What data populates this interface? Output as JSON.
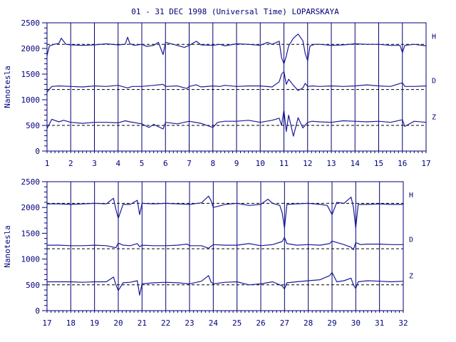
{
  "chart_data": {
    "type": "line",
    "title": "01 - 31 DEC 1998 (Universal Time) LOPARSKAYA",
    "ylabel": "Nanotesla",
    "ylim": [
      0,
      2500
    ],
    "yticks": [
      0,
      500,
      1000,
      1500,
      2000,
      2500
    ],
    "line_color": "#1a1a9a",
    "axis_color": "#00007a",
    "grid": true,
    "panels": [
      {
        "xlim": [
          1,
          17
        ],
        "xticks": [
          "1",
          "2",
          "3",
          "4",
          "5",
          "6",
          "7",
          "8",
          "9",
          "10",
          "11",
          "12",
          "13",
          "14",
          "15",
          "16",
          "17"
        ],
        "series": [
          {
            "name": "H",
            "baseline": 2080,
            "x": [
              1.0,
              1.1,
              1.3,
              1.5,
              1.6,
              1.8,
              2.0,
              2.5,
              3.0,
              3.5,
              4.0,
              4.3,
              4.4,
              4.5,
              4.7,
              5.0,
              5.2,
              5.5,
              5.7,
              5.8,
              5.9,
              6.0,
              6.5,
              6.8,
              7.0,
              7.3,
              7.5,
              8.0,
              8.3,
              8.5,
              9.0,
              9.5,
              10.0,
              10.3,
              10.5,
              10.8,
              10.9,
              11.0,
              11.1,
              11.2,
              11.4,
              11.6,
              11.8,
              11.9,
              12.0,
              12.1,
              12.3,
              12.5,
              13.0,
              13.5,
              14.0,
              14.5,
              15.0,
              15.5,
              15.9,
              16.0,
              16.1,
              16.5,
              17.0
            ],
            "y": [
              1860,
              2050,
              2080,
              2100,
              2200,
              2080,
              2070,
              2060,
              2070,
              2090,
              2070,
              2080,
              2220,
              2090,
              2060,
              2080,
              2040,
              2060,
              2120,
              2000,
              1880,
              2120,
              2060,
              2020,
              2060,
              2140,
              2070,
              2060,
              2080,
              2050,
              2090,
              2080,
              2060,
              2120,
              2080,
              2140,
              1820,
              1700,
              1850,
              2050,
              2200,
              2280,
              2150,
              1900,
              1760,
              2050,
              2080,
              2080,
              2060,
              2070,
              2090,
              2080,
              2080,
              2060,
              2060,
              1920,
              2060,
              2080,
              2050
            ]
          },
          {
            "name": "D",
            "baseline": 1200,
            "x": [
              1.0,
              1.2,
              1.5,
              2.0,
              2.5,
              3.0,
              3.5,
              4.0,
              4.4,
              4.6,
              5.0,
              5.5,
              5.9,
              6.0,
              6.5,
              6.9,
              7.0,
              7.3,
              7.5,
              8.0,
              8.3,
              8.5,
              9.0,
              9.5,
              10.0,
              10.5,
              10.8,
              10.9,
              11.0,
              11.1,
              11.2,
              11.4,
              11.6,
              11.8,
              11.9,
              12.0,
              12.2,
              12.5,
              13.0,
              13.5,
              14.0,
              14.5,
              15.0,
              15.5,
              16.0,
              16.1,
              16.5,
              17.0
            ],
            "y": [
              1150,
              1260,
              1270,
              1260,
              1250,
              1270,
              1260,
              1280,
              1230,
              1260,
              1260,
              1280,
              1300,
              1260,
              1270,
              1220,
              1260,
              1290,
              1250,
              1270,
              1260,
              1280,
              1260,
              1270,
              1270,
              1250,
              1350,
              1500,
              1550,
              1300,
              1400,
              1280,
              1180,
              1230,
              1320,
              1260,
              1270,
              1260,
              1270,
              1260,
              1270,
              1290,
              1270,
              1260,
              1330,
              1260,
              1260,
              1270
            ]
          },
          {
            "name": "Z",
            "baseline": 500,
            "x": [
              1.0,
              1.2,
              1.5,
              1.7,
              2.0,
              2.5,
              3.0,
              3.5,
              4.0,
              4.3,
              4.5,
              5.0,
              5.3,
              5.5,
              5.9,
              6.0,
              6.5,
              7.0,
              7.5,
              8.0,
              8.2,
              8.5,
              9.0,
              9.5,
              10.0,
              10.5,
              10.8,
              10.9,
              11.0,
              11.1,
              11.2,
              11.4,
              11.6,
              11.8,
              12.0,
              12.2,
              12.5,
              13.0,
              13.5,
              14.0,
              14.5,
              15.0,
              15.5,
              16.0,
              16.1,
              16.5,
              17.0
            ],
            "y": [
              440,
              620,
              570,
              600,
              560,
              540,
              560,
              560,
              550,
              590,
              570,
              530,
              460,
              520,
              430,
              560,
              530,
              580,
              540,
              460,
              560,
              580,
              580,
              600,
              560,
              600,
              640,
              500,
              800,
              380,
              700,
              290,
              650,
              450,
              560,
              580,
              570,
              560,
              590,
              580,
              570,
              580,
              560,
              610,
              480,
              580,
              560
            ]
          }
        ]
      },
      {
        "xlim": [
          17,
          32
        ],
        "xticks": [
          "17",
          "18",
          "19",
          "20",
          "21",
          "22",
          "23",
          "24",
          "25",
          "26",
          "27",
          "28",
          "29",
          "30",
          "31",
          "32"
        ],
        "series": [
          {
            "name": "H",
            "baseline": 2080,
            "x": [
              17.0,
              17.5,
              18.0,
              18.5,
              19.0,
              19.5,
              19.8,
              19.9,
              20.0,
              20.2,
              20.5,
              20.8,
              20.9,
              21.0,
              21.5,
              22.0,
              22.5,
              23.0,
              23.5,
              23.8,
              23.9,
              24.0,
              24.5,
              25.0,
              25.5,
              26.0,
              26.3,
              26.5,
              26.8,
              26.9,
              27.0,
              27.1,
              27.5,
              28.0,
              28.5,
              28.8,
              28.9,
              29.0,
              29.2,
              29.5,
              29.8,
              29.9,
              30.0,
              30.1,
              30.5,
              31.0,
              31.5,
              32.0
            ],
            "y": [
              2070,
              2070,
              2060,
              2070,
              2080,
              2070,
              2180,
              1960,
              1790,
              2060,
              2060,
              2140,
              1860,
              2080,
              2070,
              2080,
              2070,
              2060,
              2090,
              2220,
              2140,
              2000,
              2060,
              2080,
              2040,
              2060,
              2160,
              2080,
              2040,
              1900,
              1600,
              2060,
              2070,
              2080,
              2060,
              2040,
              1950,
              1860,
              2100,
              2080,
              2200,
              2010,
              1600,
              2060,
              2060,
              2070,
              2060,
              2060
            ]
          },
          {
            "name": "D",
            "baseline": 1200,
            "x": [
              17.0,
              17.5,
              18.0,
              18.5,
              19.0,
              19.5,
              19.9,
              20.0,
              20.2,
              20.5,
              20.8,
              20.9,
              21.0,
              21.5,
              22.0,
              22.5,
              22.9,
              23.0,
              23.5,
              23.8,
              24.0,
              24.5,
              25.0,
              25.5,
              26.0,
              26.5,
              26.9,
              27.0,
              27.1,
              27.5,
              28.0,
              28.5,
              28.9,
              29.0,
              29.5,
              29.8,
              29.9,
              30.0,
              30.2,
              30.5,
              31.0,
              31.5,
              32.0
            ],
            "y": [
              1270,
              1270,
              1260,
              1260,
              1270,
              1260,
              1220,
              1310,
              1270,
              1260,
              1300,
              1240,
              1270,
              1260,
              1260,
              1270,
              1290,
              1260,
              1260,
              1210,
              1280,
              1270,
              1270,
              1300,
              1260,
              1280,
              1340,
              1420,
              1300,
              1270,
              1280,
              1270,
              1300,
              1350,
              1280,
              1230,
              1180,
              1320,
              1280,
              1290,
              1290,
              1280,
              1280
            ]
          },
          {
            "name": "Z",
            "baseline": 500,
            "x": [
              17.0,
              17.5,
              18.0,
              18.5,
              19.0,
              19.5,
              19.8,
              19.9,
              20.0,
              20.2,
              20.5,
              20.8,
              20.9,
              21.0,
              21.5,
              22.0,
              22.5,
              23.0,
              23.5,
              23.8,
              23.9,
              24.0,
              24.5,
              25.0,
              25.5,
              26.0,
              26.5,
              26.9,
              27.0,
              27.1,
              27.5,
              28.0,
              28.5,
              28.9,
              29.0,
              29.2,
              29.5,
              29.8,
              29.9,
              30.0,
              30.1,
              30.5,
              31.0,
              31.5,
              32.0
            ],
            "y": [
              560,
              560,
              560,
              550,
              560,
              560,
              650,
              500,
              390,
              540,
              550,
              580,
              300,
              520,
              540,
              550,
              540,
              520,
              570,
              680,
              560,
              520,
              550,
              560,
              500,
              520,
              560,
              480,
              420,
              540,
              560,
              580,
              600,
              680,
              740,
              560,
              580,
              630,
              500,
              430,
              560,
              580,
              570,
              560,
              570
            ]
          }
        ]
      }
    ]
  }
}
